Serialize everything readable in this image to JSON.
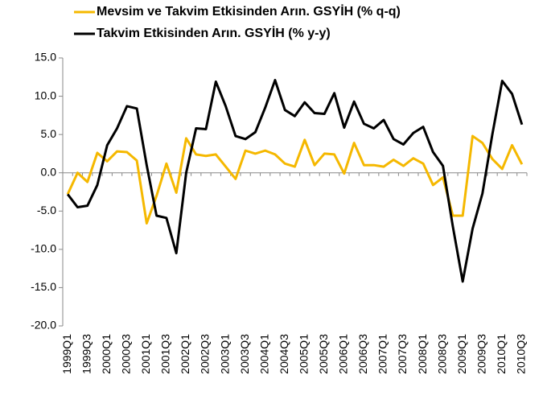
{
  "chart_data": {
    "type": "line",
    "categories": [
      "1999Q1",
      null,
      "1999Q3",
      null,
      "2000Q1",
      null,
      "2000Q3",
      null,
      "2001Q1",
      null,
      "2001Q3",
      null,
      "2002Q1",
      null,
      "2002Q3",
      null,
      "2003Q1",
      null,
      "2003Q3",
      null,
      "2004Q1",
      null,
      "2004Q3",
      null,
      "2005Q1",
      null,
      "2005Q3",
      null,
      "2006Q1",
      null,
      "2006Q3",
      null,
      "2007Q1",
      null,
      "2007Q3",
      null,
      "2008Q1",
      null,
      "2008Q3",
      null,
      "2009Q1",
      null,
      "2009Q3",
      null,
      "2010Q1",
      null,
      "2010Q3"
    ],
    "series": [
      {
        "name": "Mevsim ve Takvim Etkisinden Arın. GSYİH (% q-q)",
        "color": "#f5b800",
        "values": [
          -2.8,
          0.0,
          -1.2,
          2.6,
          1.5,
          2.8,
          2.7,
          1.6,
          -6.6,
          -3.0,
          1.2,
          -2.6,
          4.5,
          2.4,
          2.2,
          2.4,
          0.8,
          -0.8,
          2.9,
          2.5,
          2.9,
          2.4,
          1.2,
          0.8,
          4.3,
          1.0,
          2.5,
          2.4,
          -0.1,
          3.9,
          1.0,
          1.0,
          0.8,
          1.7,
          0.9,
          1.9,
          1.2,
          -1.6,
          -0.6,
          -5.6,
          -5.6,
          4.8,
          3.9,
          1.8,
          0.5,
          3.6,
          1.1
        ]
      },
      {
        "name": "Takvim Etkisinden Arın. GSYİH (% y-y)",
        "color": "#000000",
        "values": [
          -2.8,
          -4.5,
          -4.3,
          -1.6,
          3.6,
          5.8,
          8.7,
          8.4,
          1.0,
          -5.6,
          -5.9,
          -10.5,
          0.0,
          5.8,
          5.7,
          11.9,
          8.7,
          4.8,
          4.4,
          5.3,
          8.5,
          12.1,
          8.2,
          7.4,
          9.2,
          7.8,
          7.7,
          10.4,
          5.9,
          9.3,
          6.4,
          5.8,
          6.9,
          4.4,
          3.7,
          5.2,
          6.0,
          2.7,
          0.9,
          -7.0,
          -14.2,
          -7.3,
          -2.7,
          5.0,
          12.0,
          10.3,
          6.3
        ]
      }
    ],
    "ylim": [
      -20,
      15
    ],
    "yticks": [
      {
        "value": -20,
        "label": "-20.0"
      },
      {
        "value": -15,
        "label": "-15.0"
      },
      {
        "value": -10,
        "label": "-10.0"
      },
      {
        "value": -5,
        "label": "-5.0"
      },
      {
        "value": 0,
        "label": "0.0"
      },
      {
        "value": 5,
        "label": "5.0"
      },
      {
        "value": 10,
        "label": "10.0"
      },
      {
        "value": 15,
        "label": "15.0"
      }
    ],
    "grid": false,
    "legend": "top"
  }
}
